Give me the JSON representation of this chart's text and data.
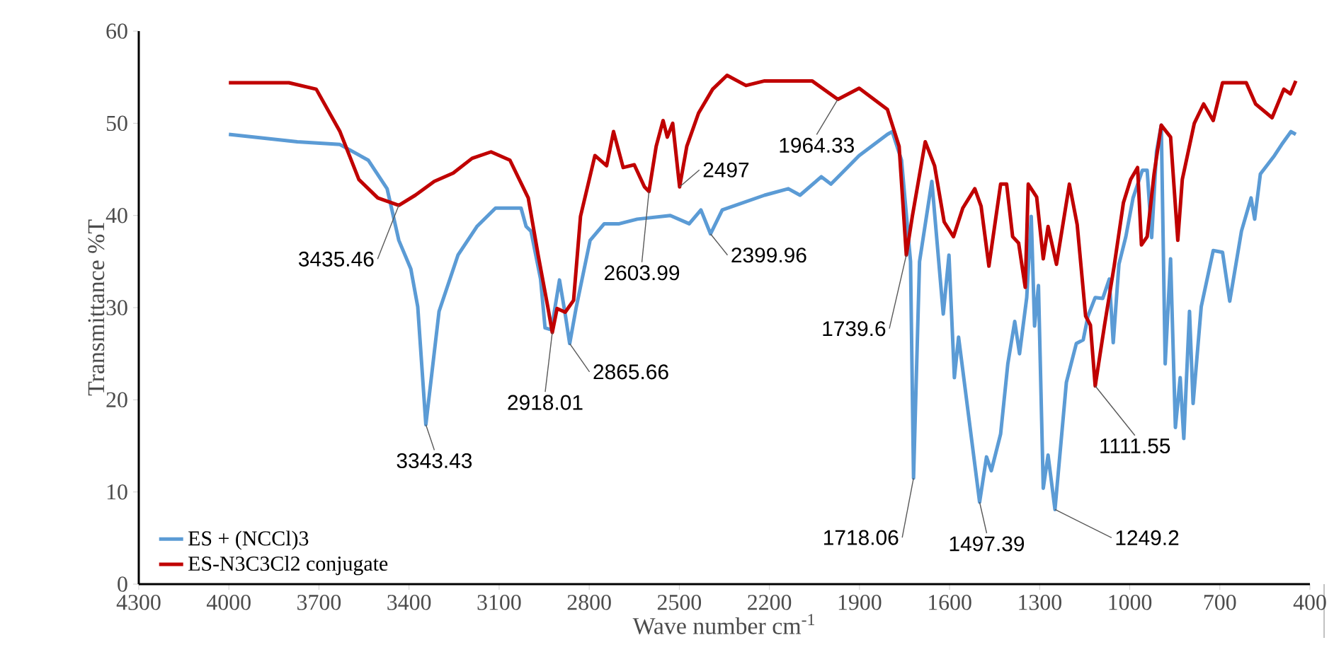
{
  "chart_data": {
    "type": "line",
    "xlabel": "Wave number cm$^{-1}$",
    "ylabel": "Transmittance %T",
    "xlim": [
      4300,
      400
    ],
    "xticks": [
      4300,
      4000,
      3700,
      3400,
      3100,
      2800,
      2500,
      2200,
      1900,
      1600,
      1300,
      1000,
      700,
      400
    ],
    "ylim": [
      0,
      60
    ],
    "yticks": [
      0,
      10,
      20,
      30,
      40,
      50,
      60
    ],
    "legend": "bottom left",
    "marker": "none",
    "line_style": "solid",
    "series": [
      {
        "name": "ES + (NCCl)3",
        "color": "#5b9bd5",
        "x": [
          4000,
          3772,
          3630,
          3536,
          3473,
          3434,
          3394,
          3371,
          3344,
          3300,
          3237,
          3174,
          3112,
          3097,
          3027,
          3010,
          2994,
          2962,
          2947,
          2926,
          2899,
          2879,
          2865,
          2844,
          2797,
          2750,
          2700,
          2640,
          2530,
          2467,
          2428,
          2396,
          2357,
          2216,
          2137,
          2098,
          2027,
          1995,
          1901,
          1807,
          1791,
          1760,
          1730,
          1720,
          1700,
          1659,
          1621,
          1602,
          1584,
          1570,
          1500,
          1477,
          1461,
          1430,
          1406,
          1383,
          1367,
          1343,
          1328,
          1317,
          1304,
          1288,
          1272,
          1249,
          1211,
          1178,
          1155,
          1139,
          1115,
          1090,
          1068,
          1055,
          1036,
          1013,
          989,
          958,
          942,
          927,
          911,
          895,
          882,
          864,
          848,
          832,
          820,
          801,
          789,
          762,
          722,
          691,
          667,
          628,
          596,
          584,
          565,
          518,
          494,
          463,
          447
        ],
        "values": [
          48.8,
          48.0,
          47.7,
          46.0,
          42.9,
          37.3,
          34.2,
          30.1,
          17.3,
          29.6,
          35.7,
          38.8,
          40.8,
          40.8,
          40.8,
          38.8,
          38.3,
          33.1,
          27.8,
          27.6,
          33.0,
          29.1,
          26.1,
          29.9,
          37.3,
          39.1,
          39.1,
          39.6,
          40.0,
          39.1,
          40.6,
          38.0,
          40.6,
          42.2,
          42.9,
          42.2,
          44.2,
          43.4,
          46.5,
          48.8,
          49.1,
          46.0,
          35.0,
          11.5,
          35.0,
          43.7,
          29.3,
          35.7,
          22.4,
          26.8,
          8.9,
          13.8,
          12.3,
          16.3,
          23.9,
          28.5,
          25.0,
          31.1,
          39.9,
          28.0,
          32.4,
          10.4,
          14.0,
          8.1,
          21.9,
          26.1,
          26.5,
          29.1,
          31.1,
          31.0,
          33.1,
          26.2,
          34.7,
          37.7,
          41.9,
          44.9,
          44.9,
          37.6,
          46.9,
          49.8,
          23.9,
          35.3,
          17.0,
          22.4,
          15.8,
          29.6,
          19.6,
          30.1,
          36.2,
          36.0,
          30.7,
          38.3,
          41.9,
          39.6,
          44.5,
          46.5,
          47.7,
          49.1,
          48.8
        ]
      },
      {
        "name": "ES-N3C3Cl2 conjugate",
        "color": "#c00000",
        "x": [
          4000,
          3800,
          3709,
          3630,
          3567,
          3504,
          3434,
          3379,
          3316,
          3253,
          3190,
          3127,
          3064,
          3003,
          2970,
          2938,
          2923,
          2907,
          2880,
          2852,
          2829,
          2781,
          2742,
          2719,
          2687,
          2650,
          2616,
          2601,
          2577,
          2554,
          2540,
          2522,
          2499,
          2475,
          2436,
          2389,
          2341,
          2278,
          2216,
          2058,
          1972,
          1901,
          1807,
          1768,
          1744,
          1724,
          1681,
          1650,
          1618,
          1587,
          1556,
          1516,
          1495,
          1469,
          1430,
          1410,
          1390,
          1370,
          1348,
          1338,
          1310,
          1288,
          1272,
          1244,
          1201,
          1175,
          1147,
          1131,
          1115,
          1084,
          1052,
          1021,
          997,
          974,
          961,
          942,
          919,
          895,
          864,
          840,
          825,
          785,
          754,
          722,
          691,
          612,
          581,
          526,
          487,
          465,
          447
        ],
        "values": [
          54.4,
          54.4,
          53.7,
          49.1,
          43.9,
          41.9,
          41.1,
          42.2,
          43.7,
          44.6,
          46.2,
          46.9,
          46.0,
          41.9,
          35.7,
          30.1,
          27.3,
          29.9,
          29.5,
          30.8,
          39.9,
          46.5,
          45.4,
          49.1,
          45.2,
          45.5,
          43.1,
          42.6,
          47.5,
          50.3,
          48.5,
          50.0,
          43.1,
          47.5,
          51.1,
          53.7,
          55.2,
          54.1,
          54.6,
          54.6,
          52.6,
          53.8,
          51.5,
          47.5,
          35.7,
          39.9,
          48.0,
          45.4,
          39.3,
          37.7,
          40.8,
          42.9,
          41.0,
          34.5,
          43.4,
          43.4,
          37.7,
          37.0,
          32.2,
          43.4,
          42.0,
          35.3,
          38.8,
          34.7,
          43.4,
          39.0,
          29.1,
          28.1,
          21.5,
          28.1,
          34.5,
          41.4,
          43.9,
          45.2,
          36.8,
          37.7,
          44.5,
          49.8,
          48.5,
          37.3,
          43.9,
          50.0,
          52.1,
          50.3,
          54.4,
          54.4,
          52.1,
          50.6,
          53.7,
          53.2,
          54.6
        ]
      }
    ],
    "annotations": [
      {
        "text": "3435.46",
        "x": 3434,
        "y": 41.1
      },
      {
        "text": "3343.43",
        "x": 3344,
        "y": 17.3
      },
      {
        "text": "2918.01",
        "x": 2923,
        "y": 27.3
      },
      {
        "text": "2865.66",
        "x": 2865,
        "y": 26.1
      },
      {
        "text": "2603.99",
        "x": 2601,
        "y": 42.6
      },
      {
        "text": "2497",
        "x": 2499,
        "y": 43.1
      },
      {
        "text": "2399.96",
        "x": 2396,
        "y": 38.0
      },
      {
        "text": "1964.33",
        "x": 1972,
        "y": 52.6
      },
      {
        "text": "1739.6",
        "x": 1744,
        "y": 35.7
      },
      {
        "text": "1718.06",
        "x": 1720,
        "y": 11.5
      },
      {
        "text": "1497.39",
        "x": 1500,
        "y": 8.9
      },
      {
        "text": "1249.2",
        "x": 1249,
        "y": 8.1
      },
      {
        "text": "1111.55",
        "x": 1115,
        "y": 21.5
      }
    ]
  }
}
